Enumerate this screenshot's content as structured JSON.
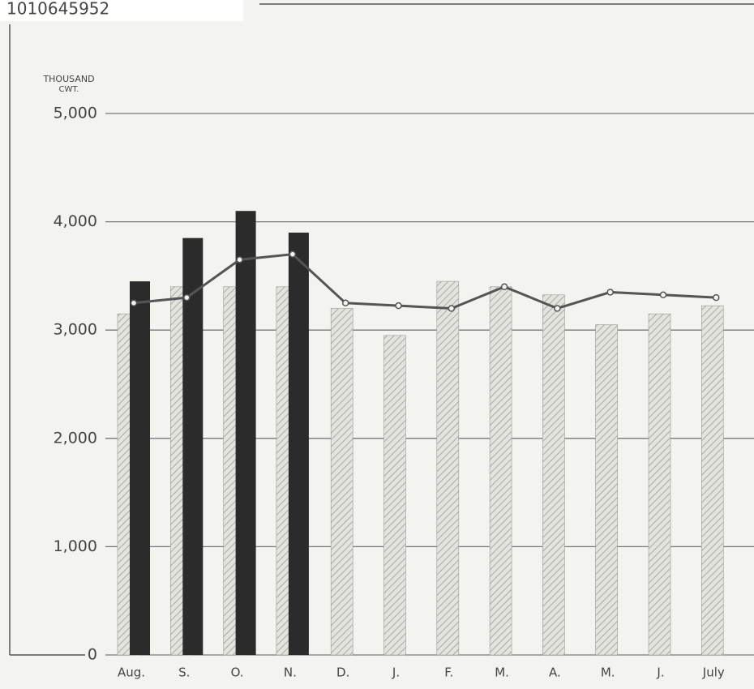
{
  "document_id": "1010645952",
  "chart_data": {
    "type": "bar",
    "ylabel_lines": [
      "THOUSAND",
      "CWT."
    ],
    "categories": [
      "Aug.",
      "S.",
      "O.",
      "N.",
      "D.",
      "J.",
      "F.",
      "M.",
      "A.",
      "M.",
      "J.",
      "July"
    ],
    "series": [
      {
        "color": "#9a9a96",
        "hatched": true,
        "values": [
          3150,
          3400,
          3400,
          3400,
          3200,
          2950,
          3450,
          3400,
          3325,
          3050,
          3150,
          3225
        ]
      },
      {
        "color": "#2b2b2b",
        "values": [
          3450,
          3850,
          4100,
          3900,
          null,
          null,
          null,
          null,
          null,
          null,
          null,
          null
        ]
      },
      {
        "color": "#555555",
        "kind": "line",
        "values": [
          3250,
          3300,
          3650,
          3700,
          3250,
          3225,
          3200,
          3400,
          3200,
          3350,
          3325,
          3300
        ]
      }
    ],
    "ylim": [
      0,
      5000
    ],
    "yticks": [
      0,
      {
        "value": 1000,
        "label": "1,000"
      },
      {
        "value": 2000,
        "label": "2,000"
      },
      {
        "value": 3000,
        "label": "3,000"
      },
      {
        "value": 4000,
        "label": "4,000"
      },
      {
        "value": 5000,
        "label": "5,000"
      }
    ],
    "grid": true
  }
}
